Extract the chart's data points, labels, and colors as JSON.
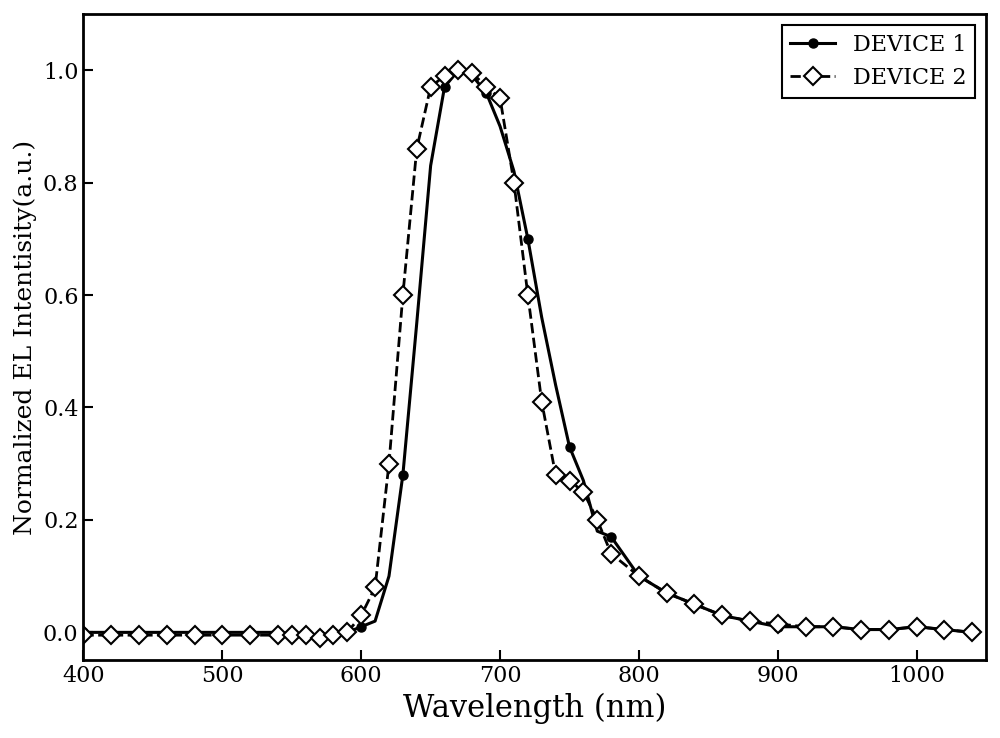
{
  "title": "",
  "xlabel": "Wavelength (nm)",
  "ylabel": "Normalized EL Intentisity(a.u.)",
  "xlim": [
    400,
    1050
  ],
  "ylim": [
    -0.05,
    1.1
  ],
  "yticks": [
    0.0,
    0.2,
    0.4,
    0.6,
    0.8,
    1.0
  ],
  "xticks": [
    400,
    500,
    600,
    700,
    800,
    900,
    1000
  ],
  "device1_x": [
    400,
    420,
    440,
    460,
    480,
    500,
    520,
    540,
    560,
    570,
    580,
    590,
    600,
    610,
    620,
    630,
    640,
    650,
    660,
    670,
    680,
    690,
    700,
    710,
    720,
    730,
    740,
    750,
    760,
    770,
    780,
    800,
    820,
    840,
    860,
    880,
    900,
    920,
    940,
    960,
    980,
    1000,
    1020,
    1040
  ],
  "device1_y": [
    0.0,
    0.0,
    0.0,
    0.0,
    0.0,
    0.0,
    0.0,
    0.0,
    -0.005,
    -0.005,
    -0.005,
    0.0,
    0.01,
    0.02,
    0.1,
    0.28,
    0.55,
    0.83,
    0.97,
    1.0,
    0.99,
    0.96,
    0.9,
    0.82,
    0.7,
    0.56,
    0.44,
    0.33,
    0.27,
    0.18,
    0.17,
    0.1,
    0.07,
    0.05,
    0.03,
    0.02,
    0.01,
    0.01,
    0.01,
    0.005,
    0.005,
    0.01,
    0.005,
    0.0
  ],
  "device2_x": [
    400,
    420,
    440,
    460,
    480,
    500,
    520,
    540,
    550,
    560,
    570,
    580,
    590,
    600,
    610,
    620,
    630,
    640,
    650,
    660,
    670,
    680,
    690,
    700,
    710,
    720,
    730,
    740,
    750,
    760,
    770,
    780,
    800,
    820,
    840,
    860,
    880,
    900,
    920,
    940,
    960,
    980,
    1000,
    1020,
    1040
  ],
  "device2_y": [
    -0.005,
    -0.005,
    -0.005,
    -0.005,
    -0.005,
    -0.005,
    -0.005,
    -0.005,
    -0.005,
    -0.005,
    -0.01,
    -0.005,
    0.0,
    0.03,
    0.08,
    0.3,
    0.6,
    0.86,
    0.97,
    0.99,
    1.0,
    0.995,
    0.97,
    0.95,
    0.8,
    0.6,
    0.41,
    0.28,
    0.27,
    0.25,
    0.2,
    0.14,
    0.1,
    0.07,
    0.05,
    0.03,
    0.02,
    0.015,
    0.01,
    0.01,
    0.005,
    0.005,
    0.01,
    0.005,
    0.0
  ],
  "line_color": "#000000",
  "background_color": "#ffffff",
  "legend_labels": [
    "DEVICE 1",
    "DEVICE 2"
  ],
  "xlabel_fontsize": 22,
  "ylabel_fontsize": 18,
  "tick_fontsize": 16,
  "legend_fontsize": 16
}
